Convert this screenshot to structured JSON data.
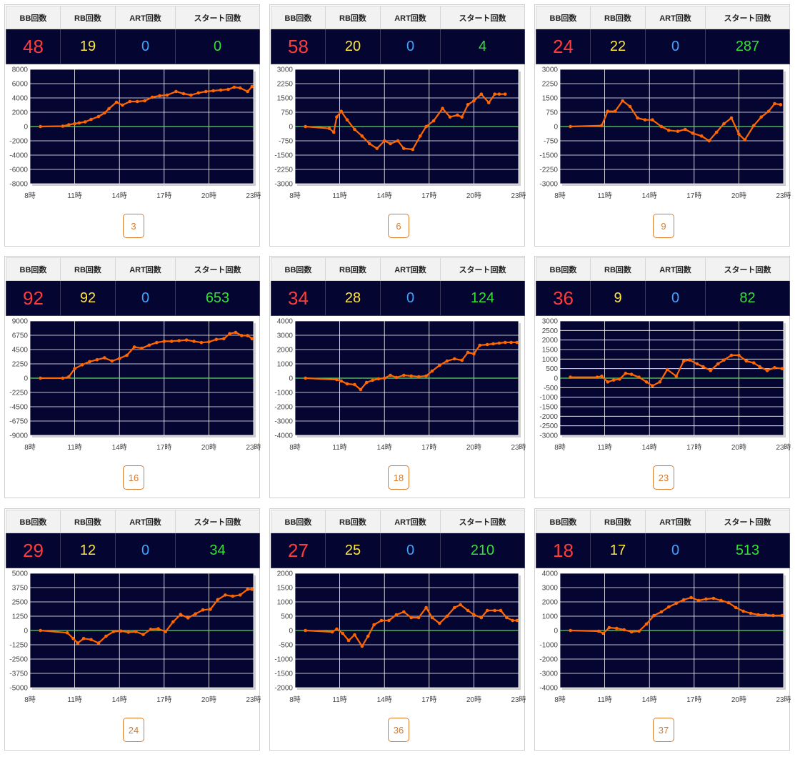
{
  "headers": {
    "bb": "BB回数",
    "rb": "RB回数",
    "art": "ART回数",
    "start": "スタート回数"
  },
  "colors": {
    "plot_bg": "#050532",
    "line": "#ff6600",
    "zero_line": "#5fd35f",
    "grid": "#ffffff",
    "machine_accent": "#d97a2a"
  },
  "x_ticks": [
    "8時",
    "11時",
    "14時",
    "17時",
    "20時",
    "23時"
  ],
  "cards": [
    {
      "machine": "3",
      "bb": "48",
      "rb": "19",
      "art": "0",
      "start": "0",
      "chart_data": {
        "type": "line",
        "x_range": [
          8,
          23
        ],
        "ylim": [
          -8000,
          8000
        ],
        "y_ticks": [
          "8000",
          "6000",
          "4000",
          "2000",
          "0",
          "-2000",
          "-4000",
          "-6000",
          "-8000"
        ],
        "x": [
          8.7,
          10.2,
          10.6,
          11.0,
          11.3,
          11.7,
          12.1,
          12.6,
          13.0,
          13.3,
          13.8,
          14.2,
          14.7,
          15.2,
          15.7,
          16.2,
          16.7,
          17.2,
          17.8,
          18.3,
          18.8,
          19.3,
          19.8,
          20.3,
          20.8,
          21.3,
          21.7,
          22.1,
          22.6,
          22.9
        ],
        "y": [
          0,
          50,
          250,
          400,
          500,
          650,
          1000,
          1400,
          1900,
          2500,
          3400,
          3000,
          3500,
          3500,
          3600,
          4100,
          4300,
          4400,
          4900,
          4600,
          4400,
          4700,
          4900,
          5000,
          5100,
          5200,
          5500,
          5400,
          4900,
          5600
        ]
      }
    },
    {
      "machine": "6",
      "bb": "58",
      "rb": "20",
      "art": "0",
      "start": "4",
      "chart_data": {
        "type": "line",
        "x_range": [
          8,
          23
        ],
        "ylim": [
          -3000,
          3000
        ],
        "y_ticks": [
          "3000",
          "2250",
          "1500",
          "750",
          "0",
          "-750",
          "-1500",
          "-2250",
          "-3000"
        ],
        "x": [
          8.7,
          10.3,
          10.6,
          10.8,
          11.1,
          11.5,
          12.0,
          12.5,
          13.0,
          13.5,
          14.0,
          14.4,
          14.9,
          15.3,
          15.9,
          16.4,
          16.8,
          17.3,
          17.9,
          18.4,
          18.9,
          19.2,
          19.6,
          20.0,
          20.5,
          21.0,
          21.4,
          21.7,
          22.1
        ],
        "y": [
          0,
          -100,
          -300,
          500,
          800,
          350,
          -150,
          -500,
          -900,
          -1150,
          -750,
          -900,
          -750,
          -1150,
          -1200,
          -500,
          0,
          300,
          950,
          500,
          600,
          500,
          1150,
          1350,
          1700,
          1250,
          1700,
          1700,
          1700
        ]
      }
    },
    {
      "machine": "9",
      "bb": "24",
      "rb": "22",
      "art": "0",
      "start": "287",
      "chart_data": {
        "type": "line",
        "x_range": [
          8,
          23
        ],
        "ylim": [
          -3000,
          3000
        ],
        "y_ticks": [
          "3000",
          "2250",
          "1500",
          "750",
          "0",
          "-750",
          "-1500",
          "-2250",
          "-3000"
        ],
        "x": [
          8.7,
          10.8,
          11.2,
          11.7,
          12.2,
          12.7,
          13.2,
          13.7,
          14.2,
          14.8,
          15.3,
          15.9,
          16.4,
          16.9,
          17.5,
          18.0,
          18.5,
          19.0,
          19.5,
          20.0,
          20.4,
          21.0,
          21.5,
          22.0,
          22.4,
          22.8
        ],
        "y": [
          0,
          50,
          800,
          800,
          1350,
          1050,
          450,
          350,
          350,
          0,
          -200,
          -250,
          -150,
          -350,
          -500,
          -750,
          -300,
          150,
          450,
          -400,
          -700,
          50,
          500,
          800,
          1200,
          1150
        ]
      }
    },
    {
      "machine": "16",
      "bb": "92",
      "rb": "92",
      "art": "0",
      "start": "653",
      "chart_data": {
        "type": "line",
        "x_range": [
          8,
          23
        ],
        "ylim": [
          -9000,
          9000
        ],
        "y_ticks": [
          "9000",
          "6750",
          "4500",
          "2250",
          "0",
          "-2250",
          "-4500",
          "-6750",
          "-9000"
        ],
        "x": [
          8.7,
          10.2,
          10.6,
          11.0,
          11.5,
          12.0,
          12.5,
          13.0,
          13.5,
          14.0,
          14.5,
          15.0,
          15.5,
          16.0,
          16.5,
          17.0,
          17.5,
          18.0,
          18.5,
          19.0,
          19.5,
          20.0,
          20.5,
          21.0,
          21.4,
          21.8,
          22.2,
          22.6,
          22.9
        ],
        "y": [
          0,
          0,
          200,
          1500,
          2100,
          2600,
          2900,
          3200,
          2700,
          3100,
          3600,
          4900,
          4700,
          5200,
          5600,
          5800,
          5800,
          5900,
          6000,
          5800,
          5600,
          5700,
          6100,
          6200,
          7000,
          7200,
          6700,
          6700,
          6200
        ]
      }
    },
    {
      "machine": "18",
      "bb": "34",
      "rb": "28",
      "art": "0",
      "start": "124",
      "chart_data": {
        "type": "line",
        "x_range": [
          8,
          23
        ],
        "ylim": [
          -4000,
          4000
        ],
        "y_ticks": [
          "4000",
          "3000",
          "2000",
          "1000",
          "0",
          "-1000",
          "-2000",
          "-3000",
          "-4000"
        ],
        "x": [
          8.7,
          10.8,
          11.1,
          11.5,
          12.0,
          12.4,
          12.8,
          13.2,
          13.6,
          14.0,
          14.4,
          14.8,
          15.3,
          15.8,
          16.3,
          16.8,
          17.2,
          17.7,
          18.2,
          18.7,
          19.2,
          19.6,
          20.0,
          20.4,
          20.9,
          21.3,
          21.7,
          22.1,
          22.5,
          22.9
        ],
        "y": [
          0,
          -100,
          -200,
          -400,
          -450,
          -800,
          -300,
          -150,
          -50,
          0,
          200,
          50,
          200,
          150,
          100,
          150,
          500,
          900,
          1200,
          1350,
          1250,
          1800,
          1700,
          2300,
          2350,
          2400,
          2450,
          2500,
          2500,
          2500
        ]
      }
    },
    {
      "machine": "23",
      "bb": "36",
      "rb": "9",
      "art": "0",
      "start": "82",
      "chart_data": {
        "type": "line",
        "x_range": [
          8,
          23
        ],
        "ylim": [
          -3000,
          3000
        ],
        "y_ticks": [
          "3000",
          "2500",
          "2000",
          "1500",
          "1000",
          "500",
          "0",
          "-500",
          "-1000",
          "-1500",
          "-2000",
          "-2500",
          "-3000"
        ],
        "x": [
          8.7,
          10.5,
          10.8,
          11.2,
          11.6,
          12.0,
          12.4,
          12.8,
          13.3,
          13.8,
          14.2,
          14.7,
          15.2,
          15.8,
          16.3,
          16.7,
          17.2,
          17.6,
          18.1,
          18.6,
          19.0,
          19.5,
          20.0,
          20.5,
          21.0,
          21.4,
          21.9,
          22.4,
          22.9
        ],
        "y": [
          50,
          50,
          100,
          -200,
          -100,
          -50,
          250,
          200,
          50,
          -200,
          -400,
          -200,
          450,
          100,
          900,
          950,
          750,
          600,
          400,
          750,
          950,
          1200,
          1200,
          900,
          800,
          600,
          400,
          550,
          500
        ]
      }
    },
    {
      "machine": "24",
      "bb": "29",
      "rb": "12",
      "art": "0",
      "start": "34",
      "chart_data": {
        "type": "line",
        "x_range": [
          8,
          23
        ],
        "ylim": [
          -5000,
          5000
        ],
        "y_ticks": [
          "5000",
          "3750",
          "2500",
          "1250",
          "0",
          "-1250",
          "-2500",
          "-3750",
          "-5000"
        ],
        "x": [
          8.7,
          10.5,
          10.9,
          11.2,
          11.6,
          12.1,
          12.6,
          13.1,
          13.6,
          14.1,
          14.6,
          15.1,
          15.6,
          16.1,
          16.6,
          17.1,
          17.6,
          18.1,
          18.6,
          19.1,
          19.6,
          20.1,
          20.6,
          21.1,
          21.6,
          22.1,
          22.6,
          22.9
        ],
        "y": [
          0,
          -200,
          -700,
          -1100,
          -700,
          -800,
          -1100,
          -500,
          -100,
          -50,
          -150,
          -100,
          -350,
          100,
          150,
          -100,
          750,
          1400,
          1100,
          1450,
          1800,
          1850,
          2700,
          3100,
          3000,
          3100,
          3600,
          3600
        ]
      }
    },
    {
      "machine": "36",
      "bb": "27",
      "rb": "25",
      "art": "0",
      "start": "210",
      "chart_data": {
        "type": "line",
        "x_range": [
          8,
          23
        ],
        "ylim": [
          -2000,
          2000
        ],
        "y_ticks": [
          "2000",
          "1500",
          "1000",
          "500",
          "0",
          "-500",
          "-1000",
          "-1500",
          "-2000"
        ],
        "x": [
          8.7,
          10.5,
          10.8,
          11.2,
          11.6,
          12.0,
          12.5,
          12.9,
          13.3,
          13.8,
          14.3,
          14.8,
          15.3,
          15.8,
          16.3,
          16.8,
          17.2,
          17.7,
          18.2,
          18.7,
          19.1,
          19.6,
          20.0,
          20.5,
          20.9,
          21.4,
          21.8,
          22.2,
          22.6,
          22.9
        ],
        "y": [
          0,
          -50,
          50,
          -100,
          -350,
          -150,
          -550,
          -200,
          200,
          350,
          350,
          550,
          650,
          450,
          450,
          800,
          450,
          250,
          500,
          800,
          900,
          700,
          550,
          450,
          700,
          700,
          700,
          450,
          350,
          350
        ]
      }
    },
    {
      "machine": "37",
      "bb": "18",
      "rb": "17",
      "art": "0",
      "start": "513",
      "chart_data": {
        "type": "line",
        "x_range": [
          8,
          23
        ],
        "ylim": [
          -4000,
          4000
        ],
        "y_ticks": [
          "4000",
          "3000",
          "2000",
          "1000",
          "0",
          "-1000",
          "-2000",
          "-3000",
          "-4000"
        ],
        "x": [
          8.7,
          10.6,
          10.9,
          11.3,
          11.8,
          12.3,
          12.8,
          13.3,
          13.8,
          14.3,
          14.8,
          15.3,
          15.8,
          16.3,
          16.8,
          17.3,
          17.8,
          18.3,
          18.8,
          19.3,
          19.8,
          20.3,
          20.8,
          21.3,
          21.8,
          22.3,
          22.9
        ],
        "y": [
          0,
          -50,
          -200,
          200,
          150,
          50,
          -100,
          -50,
          450,
          1050,
          1300,
          1650,
          1900,
          2150,
          2300,
          2100,
          2200,
          2250,
          2100,
          1950,
          1600,
          1350,
          1200,
          1100,
          1100,
          1050,
          1050
        ]
      }
    }
  ]
}
